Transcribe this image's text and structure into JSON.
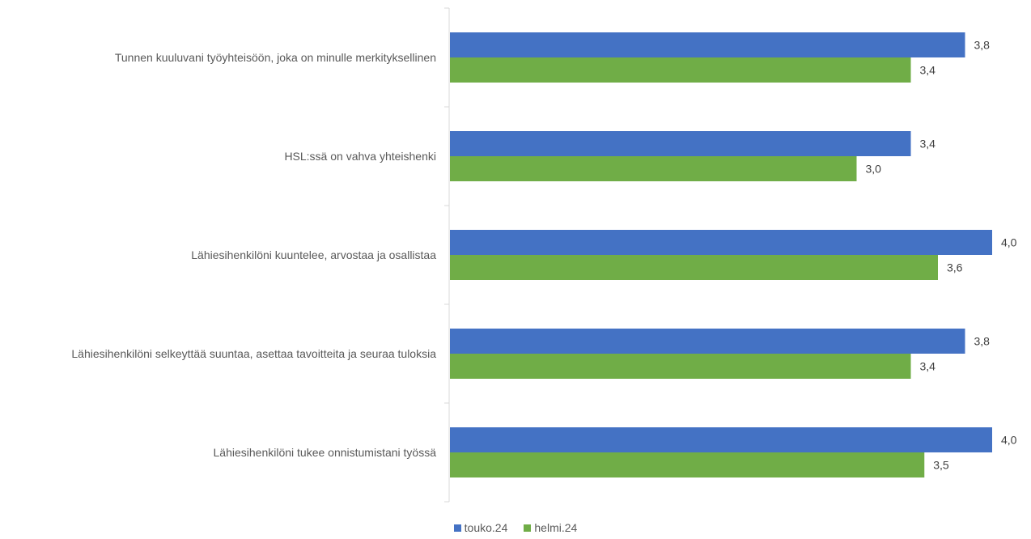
{
  "chart_data": {
    "type": "bar",
    "orientation": "horizontal",
    "categories": [
      "Tunnen kuuluvani työyhteisöön, joka on minulle merkityksellinen",
      "HSL:ssä on vahva yhteishenki",
      "Lähiesihenkilöni kuuntelee, arvostaa ja osallistaa",
      "Lähiesihenkilöni selkeyttää suuntaa, asettaa tavoitteita ja seuraa tuloksia",
      "Lähiesihenkilöni tukee onnistumistani työssä"
    ],
    "series": [
      {
        "name": "touko.24",
        "color": "#4472C4",
        "values": [
          3.8,
          3.4,
          4.0,
          3.8,
          4.0
        ],
        "labels": [
          "3,8",
          "3,4",
          "4,0",
          "3,8",
          "4,0"
        ]
      },
      {
        "name": "helmi.24",
        "color": "#70AD47",
        "values": [
          3.4,
          3.0,
          3.6,
          3.4,
          3.5
        ],
        "labels": [
          "3,4",
          "3,0",
          "3,6",
          "3,4",
          "3,5"
        ]
      }
    ],
    "xlim": [
      0,
      4
    ],
    "grid": false,
    "legend_position": "bottom"
  }
}
